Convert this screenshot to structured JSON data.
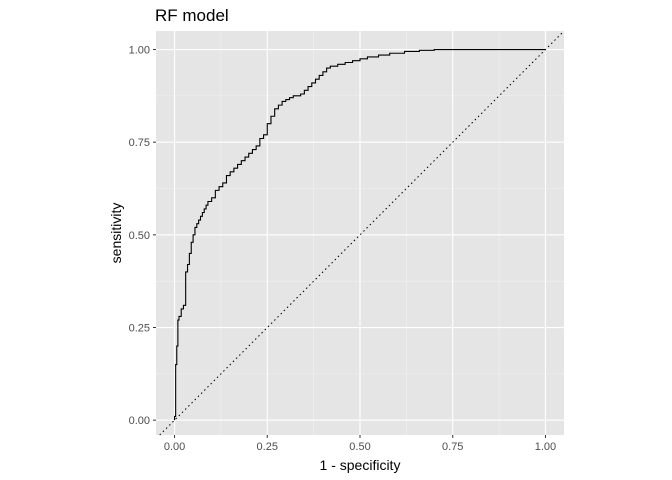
{
  "chart_data": {
    "type": "line",
    "title": "RF model",
    "xlabel": "1 - specificity",
    "ylabel": "sensitivity",
    "xlim": [
      -0.05,
      1.05
    ],
    "ylim": [
      -0.04,
      1.05
    ],
    "xticks": [
      0,
      0.25,
      0.5,
      0.75,
      1
    ],
    "xtick_labels": [
      "0.00",
      "0.25",
      "0.50",
      "0.75",
      "1.00"
    ],
    "yticks": [
      0,
      0.25,
      0.5,
      0.75,
      1
    ],
    "ytick_labels": [
      "0.00",
      "0.25",
      "0.50",
      "0.75",
      "1.00"
    ],
    "grid": true,
    "background": "#e5e5e5",
    "grid_color": "#ffffff",
    "line_color": "#000000",
    "reference_line": {
      "from": [
        0,
        0
      ],
      "to": [
        1,
        1
      ],
      "style": "dotted"
    },
    "series": [
      {
        "x": [
          0,
          0,
          0.003,
          0.003,
          0.006,
          0.006,
          0.009,
          0.009,
          0.012,
          0.012,
          0.018,
          0.018,
          0.024,
          0.024,
          0.03,
          0.03,
          0.035,
          0.035,
          0.04,
          0.04,
          0.045,
          0.045,
          0.05,
          0.05,
          0.055,
          0.055,
          0.06,
          0.06,
          0.065,
          0.065,
          0.07,
          0.07,
          0.075,
          0.075,
          0.08,
          0.08,
          0.085,
          0.085,
          0.09,
          0.09,
          0.1,
          0.1,
          0.11,
          0.11,
          0.12,
          0.12,
          0.13,
          0.13,
          0.14,
          0.14,
          0.15,
          0.15,
          0.16,
          0.16,
          0.17,
          0.17,
          0.18,
          0.18,
          0.19,
          0.19,
          0.2,
          0.2,
          0.21,
          0.21,
          0.22,
          0.22,
          0.23,
          0.23,
          0.24,
          0.24,
          0.25,
          0.25,
          0.26,
          0.26,
          0.27,
          0.27,
          0.28,
          0.28,
          0.29,
          0.29,
          0.3,
          0.3,
          0.31,
          0.31,
          0.32,
          0.32,
          0.34,
          0.34,
          0.35,
          0.35,
          0.36,
          0.36,
          0.37,
          0.37,
          0.38,
          0.38,
          0.39,
          0.39,
          0.4,
          0.4,
          0.41,
          0.41,
          0.42,
          0.42,
          0.44,
          0.44,
          0.46,
          0.46,
          0.48,
          0.48,
          0.5,
          0.5,
          0.52,
          0.52,
          0.55,
          0.55,
          0.58,
          0.58,
          0.62,
          0.62,
          0.66,
          0.66,
          0.7,
          0.7,
          0.94,
          0.94,
          1.0
        ],
        "y": [
          0,
          0.01,
          0.01,
          0.15,
          0.15,
          0.2,
          0.2,
          0.27,
          0.27,
          0.28,
          0.28,
          0.3,
          0.3,
          0.31,
          0.31,
          0.4,
          0.4,
          0.42,
          0.42,
          0.45,
          0.45,
          0.48,
          0.48,
          0.5,
          0.5,
          0.52,
          0.52,
          0.53,
          0.53,
          0.54,
          0.54,
          0.55,
          0.55,
          0.56,
          0.56,
          0.57,
          0.57,
          0.58,
          0.58,
          0.59,
          0.59,
          0.6,
          0.6,
          0.62,
          0.62,
          0.63,
          0.63,
          0.64,
          0.64,
          0.66,
          0.66,
          0.67,
          0.67,
          0.68,
          0.68,
          0.69,
          0.69,
          0.7,
          0.7,
          0.71,
          0.71,
          0.72,
          0.72,
          0.73,
          0.73,
          0.74,
          0.74,
          0.76,
          0.76,
          0.77,
          0.77,
          0.8,
          0.8,
          0.82,
          0.82,
          0.84,
          0.84,
          0.85,
          0.85,
          0.86,
          0.86,
          0.865,
          0.865,
          0.87,
          0.87,
          0.875,
          0.875,
          0.88,
          0.88,
          0.89,
          0.89,
          0.9,
          0.9,
          0.91,
          0.91,
          0.92,
          0.92,
          0.93,
          0.93,
          0.94,
          0.94,
          0.95,
          0.95,
          0.955,
          0.955,
          0.96,
          0.96,
          0.965,
          0.965,
          0.97,
          0.97,
          0.975,
          0.975,
          0.98,
          0.98,
          0.985,
          0.985,
          0.99,
          0.99,
          0.995,
          0.995,
          0.998,
          0.998,
          1.0,
          1.0,
          1.0,
          1.0
        ]
      }
    ]
  }
}
